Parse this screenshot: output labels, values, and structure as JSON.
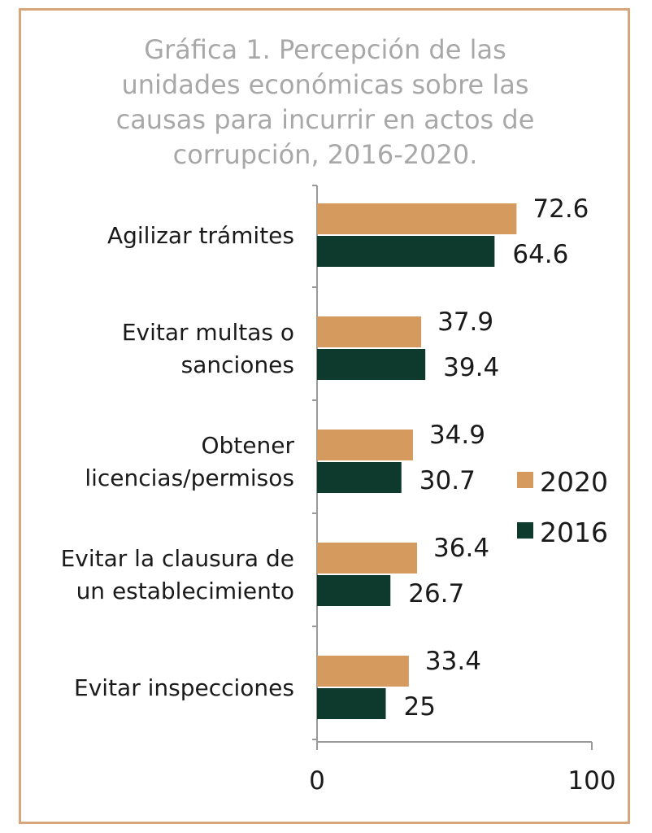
{
  "chart_data": {
    "type": "bar",
    "orientation": "horizontal",
    "title": "Gráfica 1. Percepción de las unidades económicas sobre las causas para incurrir en actos de corrupción, 2016-2020.",
    "categories": [
      [
        "Agilizar trámites"
      ],
      [
        "Evitar multas o",
        "sanciones"
      ],
      [
        "Obtener",
        "licencias/permisos"
      ],
      [
        "Evitar la clausura de",
        "un establecimiento"
      ],
      [
        "Evitar inspecciones"
      ]
    ],
    "series": [
      {
        "name": "2020",
        "color": "#d49a5e",
        "values": [
          72.6,
          37.9,
          34.9,
          36.4,
          33.4
        ],
        "labels": [
          "72.6",
          "37.9",
          "34.9",
          "36.4",
          "33.4"
        ]
      },
      {
        "name": "2016",
        "color": "#0e3a2e",
        "values": [
          64.6,
          39.4,
          30.7,
          26.7,
          25
        ],
        "labels": [
          "64.6",
          "39.4",
          "30.7",
          "26.7",
          "25"
        ]
      }
    ],
    "xlim": [
      0,
      100
    ],
    "xticks": [
      "0",
      "100"
    ],
    "xlabel": "",
    "ylabel": "",
    "legend": "right",
    "grid": false
  }
}
